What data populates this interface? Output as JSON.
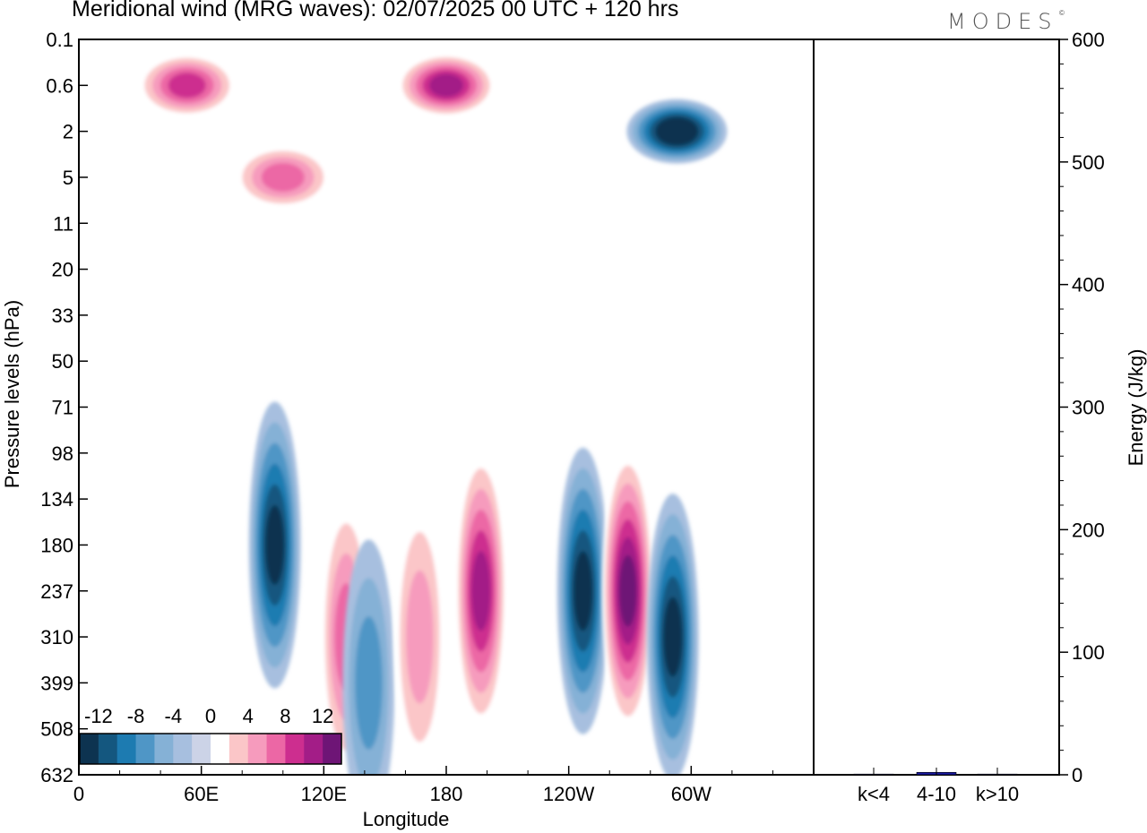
{
  "header": {
    "title": "Meridional wind (MRG waves):  02/07/2025  00 UTC  + 120 hrs",
    "logo": "MODES",
    "logo_mark": "©"
  },
  "chart_data": [
    {
      "type": "heatmap",
      "title": "Meridional wind (MRG waves):  02/07/2025  00 UTC  + 120 hrs",
      "xlabel": "Longitude",
      "ylabel": "Pressure levels (hPa)",
      "x_tick_labels": [
        "0",
        "60E",
        "120E",
        "180",
        "120W",
        "60W"
      ],
      "y_tick_labels": [
        "0.1",
        "0.6",
        "2",
        "5",
        "11",
        "20",
        "33",
        "50",
        "71",
        "98",
        "134",
        "180",
        "237",
        "310",
        "399",
        "508",
        "632"
      ],
      "colorbar": {
        "labels": [
          "-12",
          "-8",
          "-4",
          "0",
          "4",
          "8",
          "12"
        ],
        "levels": [
          -14,
          -12,
          -10,
          -8,
          -6,
          -4,
          -2,
          2,
          4,
          6,
          8,
          10,
          12,
          14
        ],
        "colors": [
          "#0d3350",
          "#14577f",
          "#1d7bb1",
          "#4f96c6",
          "#85b1d6",
          "#a7bfdf",
          "#ccd3e7",
          "#ffffff",
          "#fbc6c8",
          "#f69bbd",
          "#ec67a5",
          "#cd2e8f",
          "#a31d87",
          "#6e1576"
        ]
      },
      "features": [
        {
          "lon": 96,
          "lev": "180",
          "value": -11,
          "sign": "negative"
        },
        {
          "lon": 131,
          "lev": "310",
          "value": 8,
          "sign": "positive"
        },
        {
          "lon": 142,
          "lev": "399",
          "value": -6,
          "sign": "negative"
        },
        {
          "lon": 167,
          "lev": "310",
          "value": 6,
          "sign": "positive"
        },
        {
          "lon": 197,
          "lev": "237",
          "value": 12,
          "sign": "positive"
        },
        {
          "lon": 247,
          "lev": "237",
          "value": -12,
          "sign": "negative"
        },
        {
          "lon": 269,
          "lev": "237",
          "value": 13,
          "sign": "positive"
        },
        {
          "lon": 291,
          "lev": "310",
          "value": -12,
          "sign": "negative"
        },
        {
          "lon": 180,
          "lev": "0.6",
          "value": 12,
          "sign": "positive"
        },
        {
          "lon": 293,
          "lev": "2",
          "value": -14,
          "sign": "negative"
        },
        {
          "lon": 53,
          "lev": "0.6",
          "value": 9,
          "sign": "positive"
        },
        {
          "lon": 100,
          "lev": "5",
          "value": 7,
          "sign": "positive"
        }
      ]
    },
    {
      "type": "bar",
      "ylabel": "Energy (J/kg)",
      "ylim": [
        0,
        600
      ],
      "y_tick_labels": [
        "0",
        "100",
        "200",
        "300",
        "400",
        "500",
        "600"
      ],
      "categories": [
        "k<4",
        "4-10",
        "k>10"
      ],
      "values": [
        0,
        2,
        0
      ],
      "bar_color": "#1a1aa0"
    }
  ]
}
